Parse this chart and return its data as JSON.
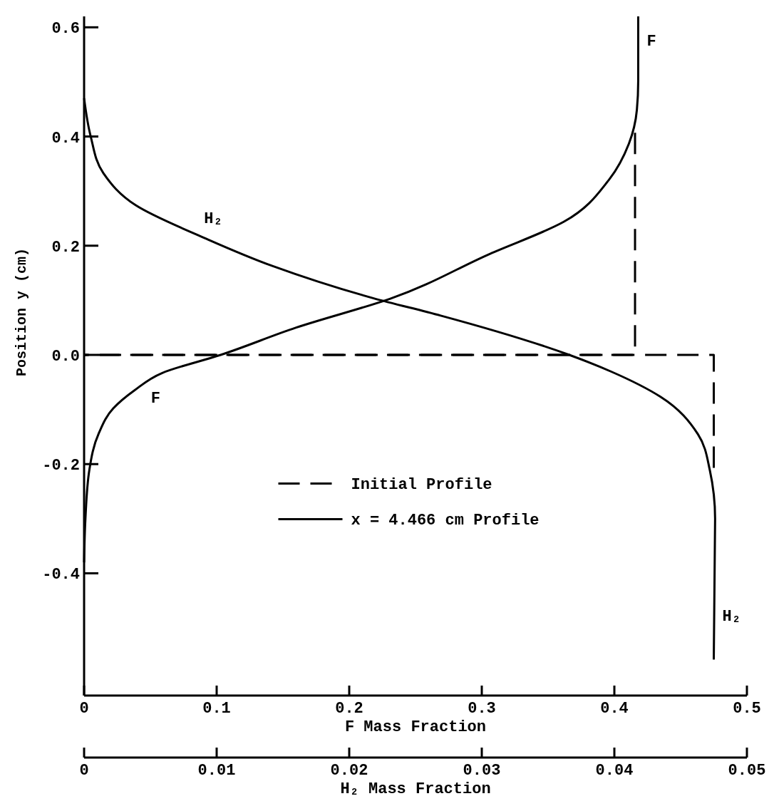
{
  "chart_data": {
    "type": "line",
    "xlabel": "F Mass Fraction",
    "x2label": "H₂ Mass Fraction",
    "ylabel": "Position y (cm)",
    "xlim": [
      0,
      0.5
    ],
    "xticks": [
      0,
      0.1,
      0.2,
      0.3,
      0.4,
      0.5
    ],
    "x2lim": [
      0,
      0.05
    ],
    "x2ticks": [
      0,
      0.01,
      0.02,
      0.03,
      0.04,
      0.05
    ],
    "ylim": [
      -0.62,
      0.62
    ],
    "yticks": [
      0.6,
      0.4,
      0.2,
      {
        "value": 0,
        "label": "0.0"
      },
      -0.2,
      -0.4
    ],
    "legend": "center",
    "grid": false,
    "marker": "none",
    "series": [
      {
        "name": "Initial Profile",
        "color": "#000000",
        "line_style": "dashed",
        "x": [
          0.4156,
          0.4156,
          0
        ],
        "values": [
          0.407,
          0,
          0
        ]
      },
      {
        "color": "#000000",
        "line_style": "dashed",
        "axis": "x2",
        "x": [
          0.0475,
          0.0475,
          0
        ],
        "values": [
          -0.207,
          0,
          0
        ]
      },
      {
        "name": "x = 4.466 cm Profile",
        "color": "#000000",
        "line_style": "solid",
        "x": [
          0,
          0.001,
          0.004,
          0.011,
          0.022,
          0.038,
          0.059,
          0.103,
          0.16,
          0.231,
          0.306,
          0.362,
          0.396,
          0.411,
          0.417,
          0.418,
          0.418
        ],
        "values": [
          -0.38,
          -0.3,
          -0.21,
          -0.144,
          -0.098,
          -0.065,
          -0.033,
          0,
          0.05,
          0.103,
          0.185,
          0.244,
          0.321,
          0.387,
          0.449,
          0.502,
          0.62
        ]
      },
      {
        "color": "#000000",
        "line_style": "solid",
        "axis": "x2",
        "x": [
          0,
          0.0005,
          0.00145,
          0.0039,
          0.0091,
          0.0142,
          0.0218,
          0.0269,
          0.0366,
          0.0398,
          0.0435,
          0.0463,
          0.0472,
          0.0476,
          0.0475
        ],
        "values": [
          0.47,
          0.4,
          0.333,
          0.274,
          0.214,
          0.163,
          0.104,
          0.072,
          0,
          -0.031,
          -0.077,
          -0.145,
          -0.211,
          -0.3,
          -0.558
        ]
      }
    ],
    "annotations": [
      "H₂",
      "F",
      "F",
      "H₂"
    ]
  }
}
